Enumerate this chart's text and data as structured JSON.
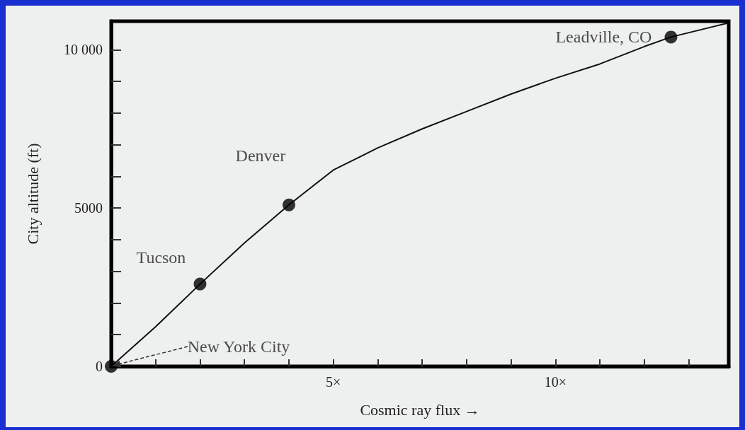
{
  "chart_data": {
    "type": "line",
    "xlabel": "Cosmic ray flux →",
    "ylabel": "City altitude (ft)",
    "xlim": [
      0,
      13.9
    ],
    "ylim": [
      0,
      10900
    ],
    "xticks": [
      {
        "value": 1,
        "label": null
      },
      {
        "value": 2,
        "label": null
      },
      {
        "value": 3,
        "label": null
      },
      {
        "value": 4,
        "label": null
      },
      {
        "value": 5,
        "label": "5×"
      },
      {
        "value": 6,
        "label": null
      },
      {
        "value": 7,
        "label": null
      },
      {
        "value": 8,
        "label": null
      },
      {
        "value": 9,
        "label": null
      },
      {
        "value": 10,
        "label": "10×"
      },
      {
        "value": 11,
        "label": null
      },
      {
        "value": 12,
        "label": null
      },
      {
        "value": 13,
        "label": null
      }
    ],
    "yticks": [
      0,
      {
        "value": 1000,
        "label": null
      },
      {
        "value": 2000,
        "label": null
      },
      {
        "value": 3000,
        "label": null
      },
      {
        "value": 4000,
        "label": null
      },
      5000,
      {
        "value": 6000,
        "label": null
      },
      {
        "value": 7000,
        "label": null
      },
      {
        "value": 8000,
        "label": null
      },
      {
        "value": 9000,
        "label": null
      },
      {
        "value": 10000,
        "label": "10 000"
      }
    ],
    "grid": false,
    "series": [
      {
        "color": "#111111",
        "marker": "none",
        "line_style": "solid",
        "x": [
          0,
          1,
          2,
          3,
          4,
          5,
          6,
          7,
          8,
          9,
          10,
          11,
          12,
          12.6,
          13.87
        ],
        "values": [
          0,
          1250,
          2600,
          3900,
          5100,
          6200,
          6900,
          7500,
          8050,
          8600,
          9100,
          9550,
          10100,
          10400,
          10840
        ]
      },
      {
        "type": "scatter",
        "color": "#000000",
        "marker": "circle",
        "x": [
          0,
          2,
          4,
          12.6
        ],
        "values": [
          0,
          2600,
          5100,
          10400
        ]
      }
    ],
    "annotations": [
      {
        "text": "New York City",
        "x": 0,
        "y": 0
      },
      {
        "text": "Tucson",
        "x": 2,
        "y": 2600
      },
      {
        "text": "Denver",
        "x": 4,
        "y": 5100
      },
      {
        "text": "Leadville, CO",
        "x": 12.6,
        "y": 10400
      }
    ]
  }
}
